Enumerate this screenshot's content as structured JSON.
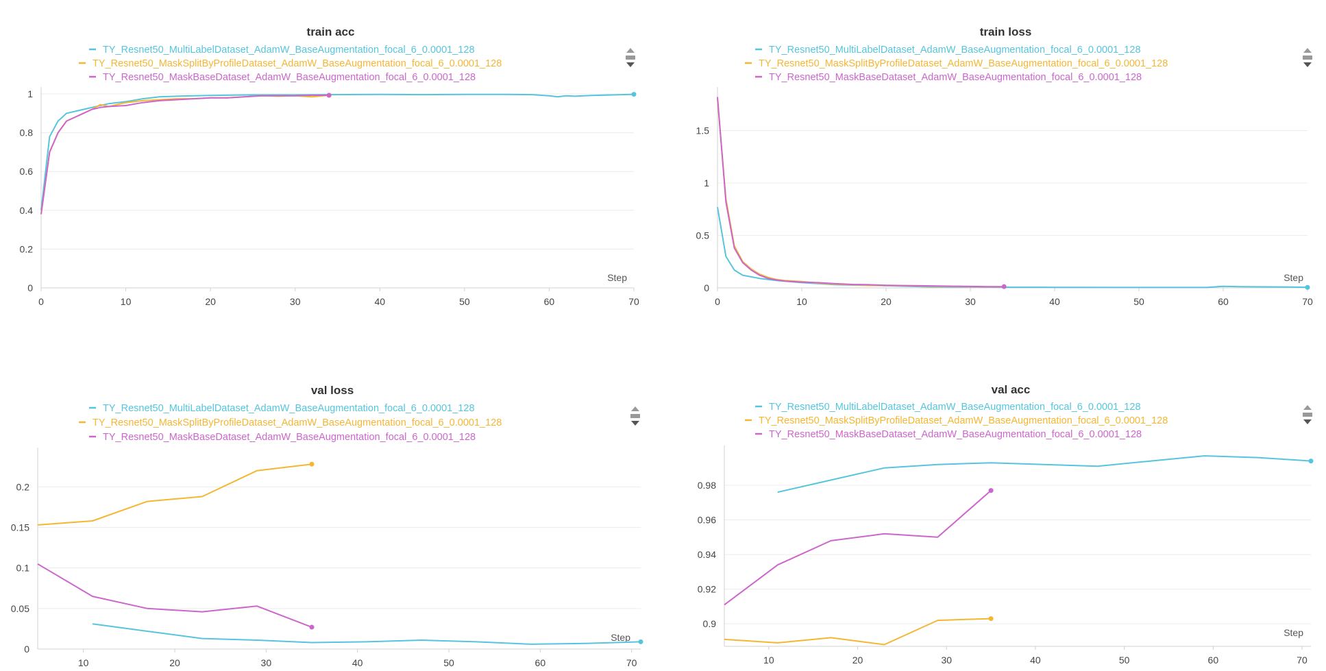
{
  "colors": {
    "cyan": "#55C5DD",
    "orange": "#F5B632",
    "magenta": "#CC66CC",
    "grid": "#ececec",
    "axis": "#d0d0d0"
  },
  "legend": [
    {
      "label": "TY_Resnet50_MultiLabelDataset_AdamW_BaseAugmentation_focal_6_0.0001_128",
      "color": "#55C5DD"
    },
    {
      "label": "TY_Resnet50_MaskSplitByProfileDataset_AdamW_BaseAugmentation_focal_6_0.0001_128",
      "color": "#F5B632"
    },
    {
      "label": "TY_Resnet50_MaskBaseDataset_AdamW_BaseAugmentation_focal_6_0.0001_128",
      "color": "#CC66CC"
    }
  ],
  "chart_data": [
    {
      "type": "line",
      "title": "train acc",
      "xlabel": "Step",
      "xlim": [
        0,
        70
      ],
      "ylim": [
        0,
        1
      ],
      "xticks": [
        0,
        10,
        20,
        30,
        40,
        50,
        60,
        70
      ],
      "xtick_labels": [
        "0",
        "10",
        "20",
        "30",
        "40",
        "50",
        "60",
        "70"
      ],
      "yticks": [
        0,
        0.2,
        0.4,
        0.6,
        0.8,
        1
      ],
      "ytick_labels": [
        "0",
        "0.2",
        "0.4",
        "0.6",
        "0.8",
        "1"
      ],
      "series": [
        {
          "name": "TY_Resnet50_MultiLabelDataset_AdamW_BaseAugmentation_focal_6_0.0001_128",
          "color": "#55C5DD",
          "x": [
            0,
            1,
            2,
            3,
            4,
            5,
            6,
            7,
            8,
            10,
            12,
            14,
            16,
            18,
            20,
            25,
            30,
            34,
            40,
            45,
            50,
            55,
            58,
            60,
            61,
            62,
            63,
            65,
            70
          ],
          "y": [
            0.4,
            0.78,
            0.86,
            0.9,
            0.91,
            0.92,
            0.93,
            0.94,
            0.95,
            0.96,
            0.975,
            0.985,
            0.988,
            0.99,
            0.992,
            0.995,
            0.995,
            0.996,
            0.997,
            0.996,
            0.997,
            0.997,
            0.996,
            0.99,
            0.985,
            0.99,
            0.988,
            0.992,
            0.998
          ]
        },
        {
          "name": "TY_Resnet50_MaskSplitByProfileDataset_AdamW_BaseAugmentation_focal_6_0.0001_128",
          "color": "#F5B632",
          "x": [
            0,
            1,
            2,
            3,
            4,
            5,
            6,
            7,
            8,
            10,
            12,
            14,
            16,
            18,
            20,
            22,
            24,
            26,
            28,
            30,
            32,
            34
          ],
          "y": [
            0.38,
            0.7,
            0.8,
            0.86,
            0.88,
            0.9,
            0.92,
            0.945,
            0.935,
            0.955,
            0.965,
            0.97,
            0.975,
            0.975,
            0.98,
            0.98,
            0.985,
            0.99,
            0.988,
            0.99,
            0.985,
            0.993
          ]
        },
        {
          "name": "TY_Resnet50_MaskBaseDataset_AdamW_BaseAugmentation_focal_6_0.0001_128",
          "color": "#CC66CC",
          "x": [
            0,
            1,
            2,
            3,
            4,
            5,
            6,
            7,
            8,
            10,
            12,
            14,
            16,
            18,
            20,
            22,
            24,
            26,
            28,
            30,
            32,
            34
          ],
          "y": [
            0.38,
            0.7,
            0.8,
            0.86,
            0.88,
            0.9,
            0.92,
            0.93,
            0.935,
            0.94,
            0.955,
            0.965,
            0.97,
            0.975,
            0.98,
            0.98,
            0.985,
            0.99,
            0.99,
            0.99,
            0.993,
            0.993
          ]
        }
      ]
    },
    {
      "type": "line",
      "title": "train loss",
      "xlabel": "Step",
      "xlim": [
        0,
        70
      ],
      "ylim": [
        0,
        1.85
      ],
      "xticks": [
        0,
        10,
        20,
        30,
        40,
        50,
        60,
        70
      ],
      "xtick_labels": [
        "0",
        "10",
        "20",
        "30",
        "40",
        "50",
        "60",
        "70"
      ],
      "yticks": [
        0,
        0.5,
        1,
        1.5
      ],
      "ytick_labels": [
        "0",
        "0.5",
        "1",
        "1.5"
      ],
      "series": [
        {
          "name": "TY_Resnet50_MultiLabelDataset_AdamW_BaseAugmentation_focal_6_0.0001_128",
          "color": "#55C5DD",
          "x": [
            0,
            1,
            2,
            3,
            5,
            7,
            10,
            14,
            20,
            25,
            30,
            35,
            40,
            50,
            58,
            60,
            62,
            65,
            68,
            70
          ],
          "y": [
            0.77,
            0.3,
            0.17,
            0.12,
            0.09,
            0.07,
            0.05,
            0.03,
            0.02,
            0.01,
            0.008,
            0.006,
            0.005,
            0.004,
            0.004,
            0.015,
            0.012,
            0.01,
            0.008,
            0.005
          ]
        },
        {
          "name": "TY_Resnet50_MaskSplitByProfileDataset_AdamW_BaseAugmentation_focal_6_0.0001_128",
          "color": "#F5B632",
          "x": [
            0,
            1,
            2,
            3,
            4,
            5,
            6,
            7,
            8,
            10,
            12,
            14,
            16,
            18,
            20,
            22,
            24,
            26,
            28,
            30,
            32,
            34
          ],
          "y": [
            1.8,
            0.85,
            0.4,
            0.25,
            0.18,
            0.13,
            0.1,
            0.08,
            0.07,
            0.06,
            0.045,
            0.035,
            0.03,
            0.025,
            0.022,
            0.02,
            0.018,
            0.015,
            0.013,
            0.012,
            0.01,
            0.01
          ]
        },
        {
          "name": "TY_Resnet50_MaskBaseDataset_AdamW_BaseAugmentation_focal_6_0.0001_128",
          "color": "#CC66CC",
          "x": [
            0,
            1,
            2,
            3,
            4,
            5,
            6,
            7,
            8,
            10,
            12,
            14,
            16,
            18,
            20,
            22,
            24,
            26,
            28,
            30,
            32,
            34
          ],
          "y": [
            1.82,
            0.82,
            0.38,
            0.24,
            0.17,
            0.12,
            0.09,
            0.075,
            0.065,
            0.055,
            0.05,
            0.04,
            0.033,
            0.03,
            0.025,
            0.022,
            0.02,
            0.018,
            0.016,
            0.014,
            0.012,
            0.012
          ]
        }
      ]
    },
    {
      "type": "line",
      "title": "val loss",
      "xlabel": "Step",
      "xlim": [
        5,
        71
      ],
      "ylim": [
        0,
        0.24
      ],
      "xticks": [
        10,
        20,
        30,
        40,
        50,
        60,
        70
      ],
      "xtick_labels": [
        "10",
        "20",
        "30",
        "40",
        "50",
        "60",
        "70"
      ],
      "yticks": [
        0,
        0.05,
        0.1,
        0.15,
        0.2
      ],
      "ytick_labels": [
        "0",
        "0.05",
        "0.1",
        "0.15",
        "0.2"
      ],
      "series": [
        {
          "name": "TY_Resnet50_MultiLabelDataset_AdamW_BaseAugmentation_focal_6_0.0001_128",
          "color": "#55C5DD",
          "x": [
            11,
            17,
            23,
            29,
            35,
            41,
            47,
            53,
            59,
            65,
            71
          ],
          "y": [
            0.031,
            0.022,
            0.013,
            0.011,
            0.008,
            0.009,
            0.011,
            0.009,
            0.006,
            0.007,
            0.009
          ]
        },
        {
          "name": "TY_Resnet50_MaskSplitByProfileDataset_AdamW_BaseAugmentation_focal_6_0.0001_128",
          "color": "#F5B632",
          "x": [
            5,
            11,
            17,
            23,
            29,
            35
          ],
          "y": [
            0.153,
            0.158,
            0.182,
            0.188,
            0.22,
            0.228
          ]
        },
        {
          "name": "TY_Resnet50_MaskBaseDataset_AdamW_BaseAugmentation_focal_6_0.0001_128",
          "color": "#CC66CC",
          "x": [
            5,
            11,
            17,
            23,
            29,
            35
          ],
          "y": [
            0.105,
            0.065,
            0.05,
            0.046,
            0.053,
            0.027
          ]
        }
      ]
    },
    {
      "type": "line",
      "title": "val acc",
      "xlabel": "Step",
      "xlim": [
        5,
        71
      ],
      "ylim": [
        0.887,
        0.999
      ],
      "xticks": [
        10,
        20,
        30,
        40,
        50,
        60,
        70
      ],
      "xtick_labels": [
        "10",
        "20",
        "30",
        "40",
        "50",
        "60",
        "70"
      ],
      "yticks": [
        0.9,
        0.92,
        0.94,
        0.96,
        0.98
      ],
      "ytick_labels": [
        "0.9",
        "0.92",
        "0.94",
        "0.96",
        "0.98"
      ],
      "series": [
        {
          "name": "TY_Resnet50_MultiLabelDataset_AdamW_BaseAugmentation_focal_6_0.0001_128",
          "color": "#55C5DD",
          "x": [
            11,
            17,
            23,
            29,
            35,
            41,
            47,
            53,
            59,
            65,
            71
          ],
          "y": [
            0.976,
            0.983,
            0.99,
            0.992,
            0.993,
            0.992,
            0.991,
            0.994,
            0.997,
            0.996,
            0.994
          ]
        },
        {
          "name": "TY_Resnet50_MaskSplitByProfileDataset_AdamW_BaseAugmentation_focal_6_0.0001_128",
          "color": "#F5B632",
          "x": [
            5,
            11,
            17,
            23,
            29,
            35
          ],
          "y": [
            0.891,
            0.889,
            0.892,
            0.888,
            0.902,
            0.903
          ]
        },
        {
          "name": "TY_Resnet50_MaskBaseDataset_AdamW_BaseAugmentation_focal_6_0.0001_128",
          "color": "#CC66CC",
          "x": [
            5,
            11,
            17,
            23,
            29,
            35
          ],
          "y": [
            0.911,
            0.934,
            0.948,
            0.952,
            0.95,
            0.977
          ]
        }
      ]
    }
  ]
}
